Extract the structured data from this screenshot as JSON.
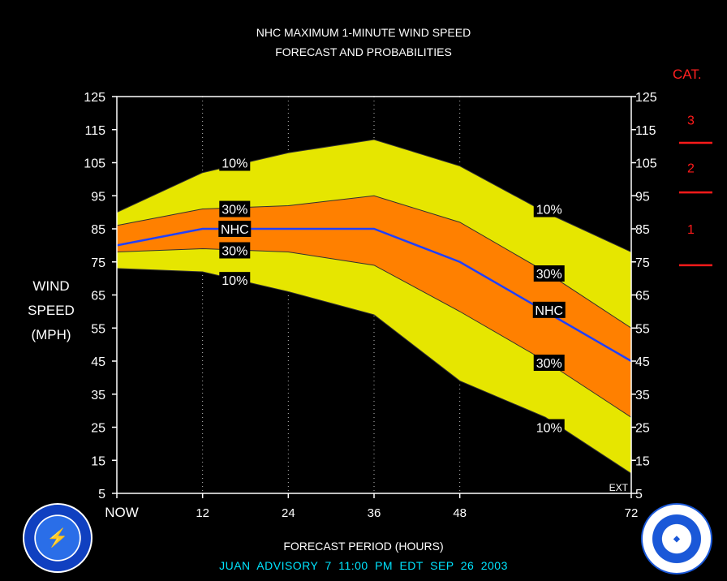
{
  "header": {
    "line1": "NHC MAXIMUM 1-MINUTE WIND SPEED",
    "line2": "FORECAST AND PROBABILITIES"
  },
  "ylabel_lines": [
    "WIND",
    "SPEED",
    "(MPH)"
  ],
  "xlabel": "FORECAST PERIOD (HOURS)",
  "advisory": "JUAN   ADVISORY  7 11:00  PM  EDT  SEP  26  2003",
  "category_header": "CAT.",
  "categories": [
    {
      "label": "3"
    },
    {
      "label": "2"
    },
    {
      "label": "1"
    }
  ],
  "colors": {
    "background": "#000000",
    "band_10": "#e6e600",
    "band_30": "#ff8000",
    "nhc_line": "#2040ff",
    "category": "#ff1a1a",
    "advisory": "#00e5ff"
  },
  "icons": {
    "left_seal": "nws-seal-icon",
    "right_seal": "noaa-seal-icon"
  },
  "chart_data": {
    "type": "area",
    "x_tick_labels": [
      "NOW",
      "12",
      "24",
      "36",
      "48",
      "72"
    ],
    "x_ticks": [
      0,
      12,
      24,
      36,
      48,
      72
    ],
    "x": [
      0,
      12,
      24,
      36,
      48,
      60,
      72
    ],
    "xlim": [
      0,
      72
    ],
    "ylim": [
      5,
      125
    ],
    "y_ticks": [
      5,
      15,
      25,
      35,
      45,
      55,
      65,
      75,
      85,
      95,
      105,
      115,
      125
    ],
    "ext_label": "EXT",
    "series": [
      {
        "name": "10%",
        "role": "upper10",
        "values": [
          90,
          102,
          108,
          112,
          104,
          90,
          78
        ]
      },
      {
        "name": "30%",
        "role": "upper30",
        "values": [
          86,
          91,
          92,
          95,
          87,
          72,
          55
        ]
      },
      {
        "name": "NHC",
        "role": "nhc",
        "values": [
          80,
          85,
          85,
          85,
          75,
          60,
          45
        ]
      },
      {
        "name": "30%",
        "role": "lower30",
        "values": [
          78,
          79,
          78,
          74,
          60,
          45,
          28
        ]
      },
      {
        "name": "10%",
        "role": "lower10",
        "values": [
          73,
          72,
          66,
          59,
          39,
          28,
          11
        ]
      }
    ],
    "labels": [
      {
        "text": "10%",
        "x": 16.5,
        "y": 105
      },
      {
        "text": "30%",
        "x": 16.5,
        "y": 91
      },
      {
        "text": "NHC",
        "x": 16.5,
        "y": 85
      },
      {
        "text": "30%",
        "x": 16.5,
        "y": 78.5
      },
      {
        "text": "10%",
        "x": 16.5,
        "y": 69.5
      },
      {
        "text": "10%",
        "x": 60.5,
        "y": 91
      },
      {
        "text": "30%",
        "x": 60.5,
        "y": 71.5
      },
      {
        "text": "NHC",
        "x": 60.5,
        "y": 60.5
      },
      {
        "text": "30%",
        "x": 60.5,
        "y": 44.5
      },
      {
        "text": "10%",
        "x": 60.5,
        "y": 25
      }
    ],
    "category_thresholds": [
      111,
      96,
      74
    ]
  }
}
